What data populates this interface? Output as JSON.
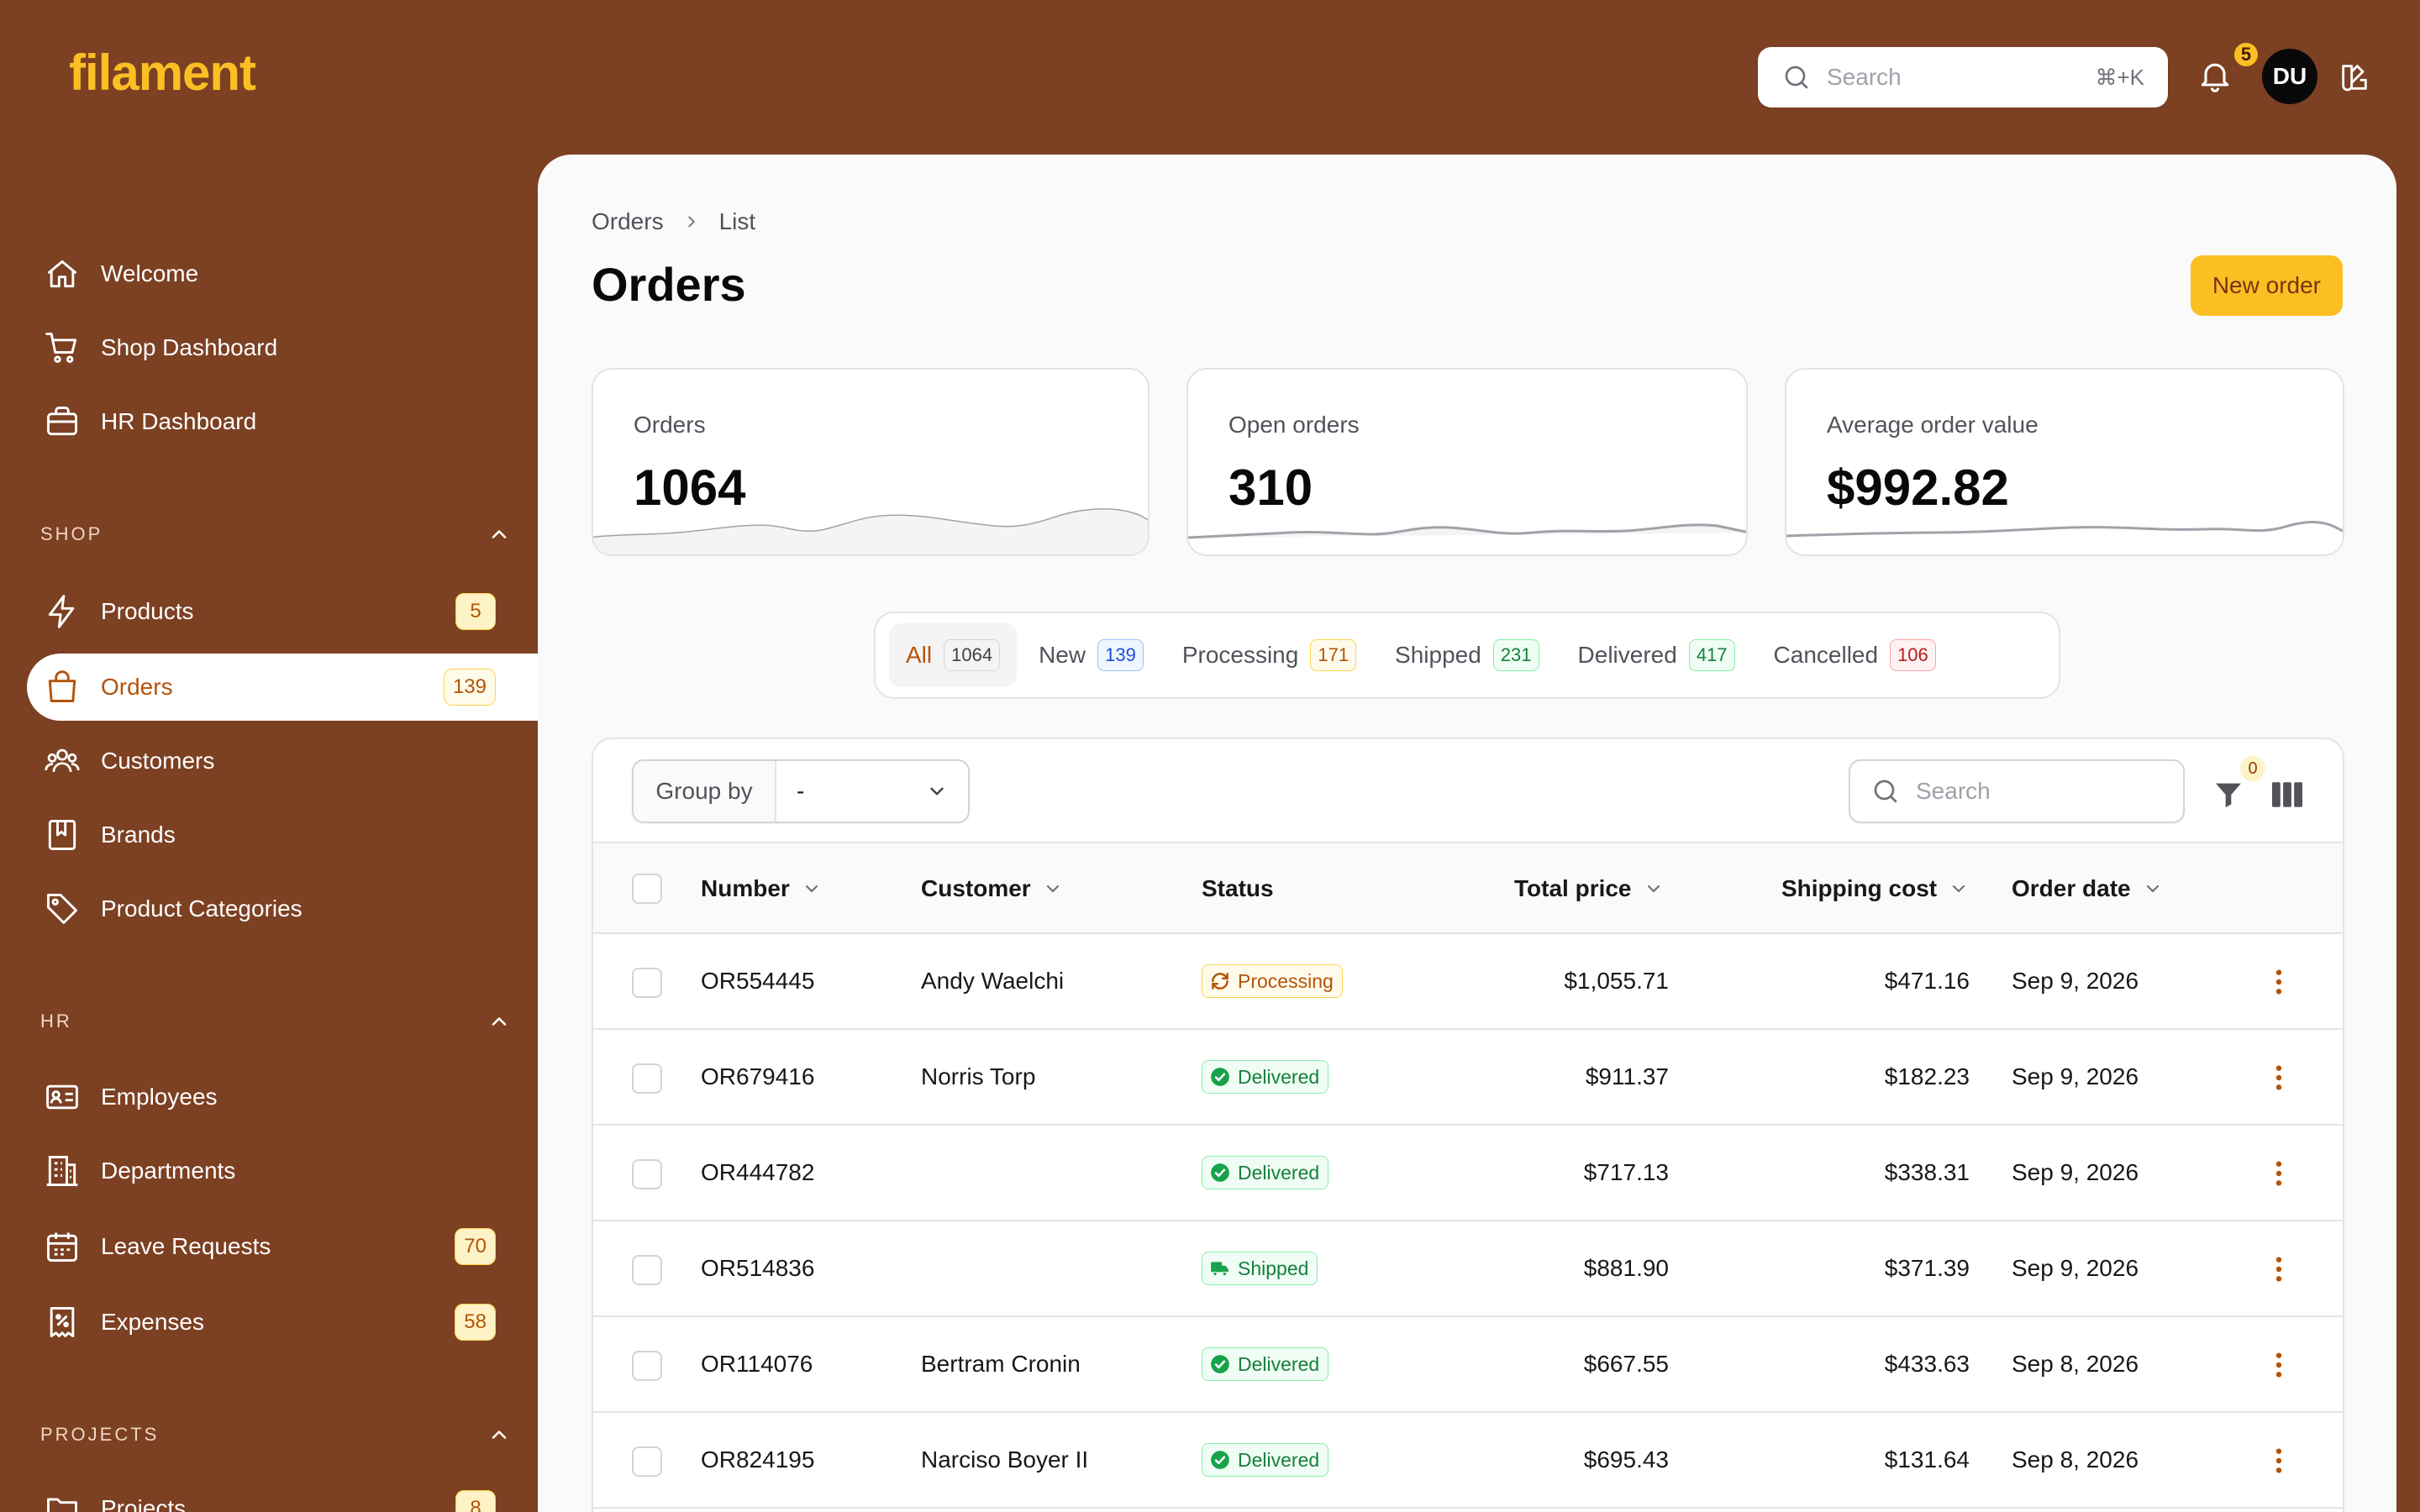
{
  "brand": {
    "logo": "filament"
  },
  "topbar": {
    "search_placeholder": "Search",
    "search_shortcut": "⌘+K",
    "notifications_count": "5",
    "avatar_initials": "DU"
  },
  "sidebar": {
    "top_items": [
      {
        "label": "Welcome",
        "icon": "home-icon"
      },
      {
        "label": "Shop Dashboard",
        "icon": "cart-icon"
      },
      {
        "label": "HR Dashboard",
        "icon": "briefcase-icon"
      }
    ],
    "groups": {
      "shop": {
        "label": "SHOP"
      },
      "hr": {
        "label": "HR"
      },
      "projects": {
        "label": "PROJECTS"
      }
    },
    "shop_items": [
      {
        "label": "Products",
        "badge": "5",
        "icon": "bolt-icon"
      },
      {
        "label": "Orders",
        "badge": "139",
        "icon": "shopping-bag-icon",
        "active": true
      },
      {
        "label": "Customers",
        "icon": "users-icon"
      },
      {
        "label": "Brands",
        "icon": "book-icon"
      },
      {
        "label": "Product Categories",
        "icon": "tag-icon"
      }
    ],
    "hr_items": [
      {
        "label": "Employees",
        "icon": "id-card-icon"
      },
      {
        "label": "Departments",
        "icon": "building-icon"
      },
      {
        "label": "Leave Requests",
        "badge": "70",
        "icon": "calendar-icon"
      },
      {
        "label": "Expenses",
        "badge": "58",
        "icon": "receipt-icon"
      }
    ],
    "projects_items": [
      {
        "label": "Projects",
        "badge": "8",
        "icon": "folder-icon"
      }
    ]
  },
  "page": {
    "breadcrumb": [
      "Orders",
      "List"
    ],
    "title": "Orders",
    "new_button": "New order"
  },
  "stats": [
    {
      "label": "Orders",
      "value": "1064"
    },
    {
      "label": "Open orders",
      "value": "310"
    },
    {
      "label": "Average order value",
      "value": "$992.82"
    }
  ],
  "tabs": [
    {
      "label": "All",
      "count": "1064",
      "active": true,
      "bg": "#f4f4f5",
      "fg": "#3f3f46",
      "border": "#d4d4d8"
    },
    {
      "label": "New",
      "count": "139",
      "bg": "#eff6ff",
      "fg": "#1d4ed8",
      "border": "#93c5fd"
    },
    {
      "label": "Processing",
      "count": "171",
      "bg": "#fffbeb",
      "fg": "#b45309",
      "border": "#fcd34d"
    },
    {
      "label": "Shipped",
      "count": "231",
      "bg": "#f0fdf4",
      "fg": "#15803d",
      "border": "#86efac"
    },
    {
      "label": "Delivered",
      "count": "417",
      "bg": "#f0fdf4",
      "fg": "#15803d",
      "border": "#86efac"
    },
    {
      "label": "Cancelled",
      "count": "106",
      "bg": "#fef2f2",
      "fg": "#b91c1c",
      "border": "#fca5a5"
    }
  ],
  "table": {
    "group_by_label": "Group by",
    "group_by_value": "-",
    "search_placeholder": "Search",
    "filter_count": "0",
    "columns": [
      "Number",
      "Customer",
      "Status",
      "Total price",
      "Shipping cost",
      "Order date"
    ],
    "rows": [
      {
        "number": "OR554445",
        "customer": "Andy Waelchi",
        "status": "Processing",
        "total": "$1,055.71",
        "shipping": "$471.16",
        "date": "Sep 9, 2026"
      },
      {
        "number": "OR679416",
        "customer": "Norris Torp",
        "status": "Delivered",
        "total": "$911.37",
        "shipping": "$182.23",
        "date": "Sep 9, 2026"
      },
      {
        "number": "OR444782",
        "customer": "",
        "status": "Delivered",
        "total": "$717.13",
        "shipping": "$338.31",
        "date": "Sep 9, 2026"
      },
      {
        "number": "OR514836",
        "customer": "",
        "status": "Shipped",
        "total": "$881.90",
        "shipping": "$371.39",
        "date": "Sep 9, 2026"
      },
      {
        "number": "OR114076",
        "customer": "Bertram Cronin",
        "status": "Delivered",
        "total": "$667.55",
        "shipping": "$433.63",
        "date": "Sep 8, 2026"
      },
      {
        "number": "OR824195",
        "customer": "Narciso Boyer II",
        "status": "Delivered",
        "total": "$695.43",
        "shipping": "$131.64",
        "date": "Sep 8, 2026"
      }
    ]
  },
  "colors": {
    "sidebar_bg": "#7c4022",
    "accent": "#fbbf24",
    "active_text": "#b45309"
  }
}
